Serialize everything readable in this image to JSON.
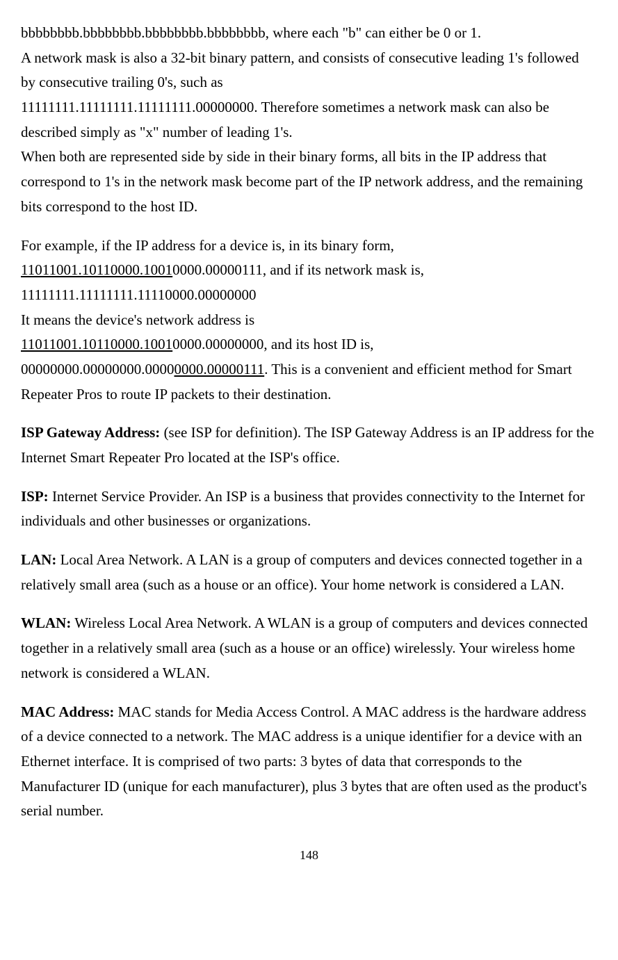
{
  "p1_line1": "bbbbbbbb.bbbbbbbb.bbbbbbbb.bbbbbbbb, where each \"b\" can either be 0 or 1.",
  "p1_line2": "A network mask is also a 32-bit binary pattern, and consists of consecutive leading 1's followed by consecutive trailing 0's, such as",
  "p1_line3": "11111111.11111111.11111111.00000000. Therefore sometimes a network mask can also be described simply as \"x\" number of leading 1's.",
  "p1_line4": "When both are represented side by side in their binary forms, all bits in the IP address that correspond to 1's in the network mask become part of the IP network address, and the remaining bits correspond to the host ID.",
  "p2_line1": "For example, if the IP address for a device is, in its binary form,",
  "p2_underline1": "11011001.10110000.1001",
  "p2_after_u1": "0000.00000111, and if its network mask is,",
  "p2_line3": "11111111.11111111.11110000.00000000",
  "p2_line4": "It means the device's network address is",
  "p2_underline2": "11011001.10110000.1001",
  "p2_after_u2": "0000.00000000, and its host ID is,",
  "p2_before_u3": "00000000.00000000.0000",
  "p2_underline3": "0000.00000111",
  "p2_after_u3": ". This is a convenient and efficient method for Smart Repeater Pros to route IP packets to their destination.",
  "isp_gateway_label": "ISP Gateway Address:",
  "isp_gateway_text": " (see ISP for definition). The ISP Gateway Address is an IP address for the Internet Smart Repeater Pro located at the ISP's office.",
  "isp_label": "ISP:",
  "isp_text": " Internet Service Provider. An ISP is a business that provides connectivity to the Internet for individuals and other businesses or organizations.",
  "lan_label": "LAN:",
  "lan_text": " Local Area Network. A LAN is a group of computers and devices connected together in a relatively small area (such as a house or an office). Your home network is considered a LAN.",
  "wlan_label": "WLAN:",
  "wlan_text": " Wireless Local Area Network. A WLAN is a group of computers and devices connected together in a relatively small area (such as a house or an office) wirelessly. Your wireless home network is considered a WLAN.",
  "mac_label": "MAC Address:",
  "mac_text": " MAC stands for Media Access Control. A MAC address is the hardware address of a device connected to a network. The MAC address is a unique identifier for a device with an Ethernet interface. It is comprised of two parts: 3 bytes of data that corresponds to the Manufacturer ID (unique for each manufacturer), plus 3 bytes that are often used as the product's serial number.",
  "page_number": "148"
}
